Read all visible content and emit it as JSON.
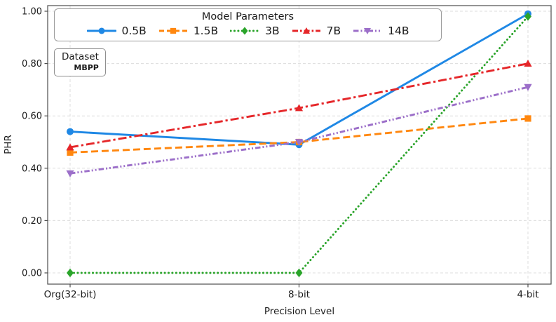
{
  "figure": {
    "background": "#ffffff",
    "colors": {
      "grid": "#dcdcdc",
      "spine": "#4d4d4d",
      "tick": "#4d4d4d",
      "text": "#1a1a1a"
    }
  },
  "dataset_box": {
    "label": "Dataset",
    "value": "MBPP"
  },
  "chart_data": {
    "type": "line",
    "title": "",
    "xlabel": "Precision Level",
    "ylabel": "PHR",
    "categories": [
      "Org(32-bit)",
      "8-bit",
      "4-bit"
    ],
    "yticks": [
      0.0,
      0.2,
      0.4,
      0.6,
      0.8,
      1.0
    ],
    "ytick_labels": [
      "0.00",
      "0.20",
      "0.40",
      "0.60",
      "0.80",
      "1.00"
    ],
    "ylim": [
      -0.04,
      1.02
    ],
    "grid": true,
    "legend": {
      "title": "Model Parameters",
      "position": "top-center"
    },
    "series": [
      {
        "name": "0.5B",
        "color": "#1f88e5",
        "linestyle": "solid",
        "marker": "circle",
        "values": [
          0.54,
          0.49,
          0.99
        ]
      },
      {
        "name": "1.5B",
        "color": "#ff870f",
        "linestyle": "dashed",
        "marker": "square",
        "values": [
          0.46,
          0.5,
          0.59
        ]
      },
      {
        "name": "3B",
        "color": "#2aa42a",
        "linestyle": "dotted",
        "marker": "diamond",
        "values": [
          0.0,
          0.0,
          0.98
        ]
      },
      {
        "name": "7B",
        "color": "#e52629",
        "linestyle": "dashdot",
        "marker": "triangle-up",
        "values": [
          0.48,
          0.63,
          0.8
        ]
      },
      {
        "name": "14B",
        "color": "#9c6fc9",
        "linestyle": "dashdotdot",
        "marker": "triangle-down",
        "values": [
          0.38,
          0.5,
          0.71
        ]
      }
    ]
  }
}
